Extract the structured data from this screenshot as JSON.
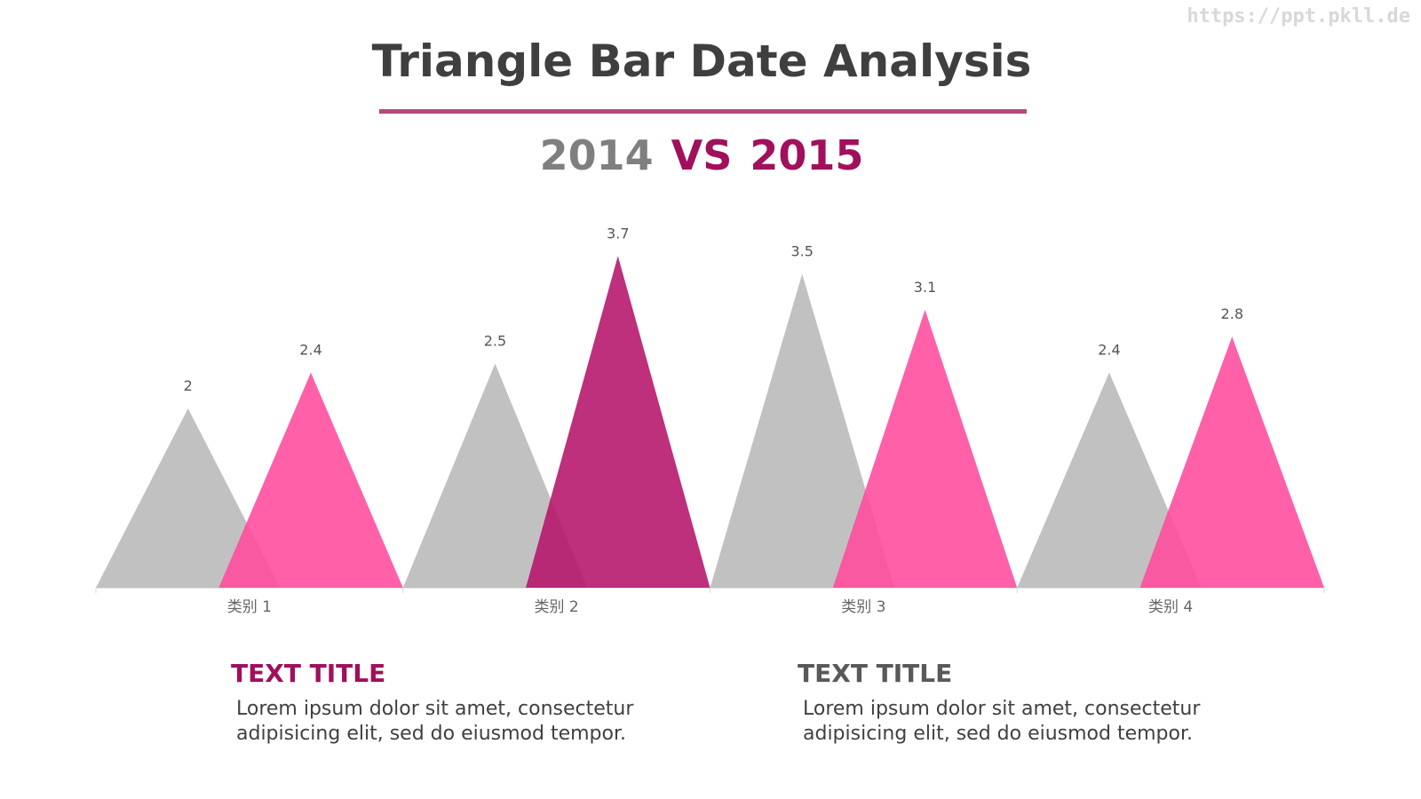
{
  "watermark": "https://ppt.pkll.de",
  "chart_data": {
    "type": "triangle-bar",
    "title": "Triangle Bar Date Analysis",
    "separator": "VS",
    "categories": [
      "类别 1",
      "类别 2",
      "类别 3",
      "类别 4"
    ],
    "series": [
      {
        "name": "2014",
        "color": "#b9b8ba",
        "values": [
          2,
          2.5,
          3.5,
          2.4
        ]
      },
      {
        "name": "2015",
        "color": "#ff4a9c",
        "colors": [
          "#ff4a9c",
          "#b5126a",
          "#ff4a9c",
          "#ff4a9c"
        ],
        "values": [
          2.4,
          3.7,
          3.1,
          2.8
        ]
      }
    ],
    "ylim": [
      0,
      4
    ]
  },
  "text_blocks": [
    {
      "title": "TEXT TITLE",
      "body": "Lorem ipsum dolor sit amet, consectetur adipisicing elit, sed do eiusmod tempor."
    },
    {
      "title": "TEXT TITLE",
      "body": "Lorem ipsum dolor sit amet, consectetur adipisicing elit, sed do eiusmod tempor."
    }
  ]
}
